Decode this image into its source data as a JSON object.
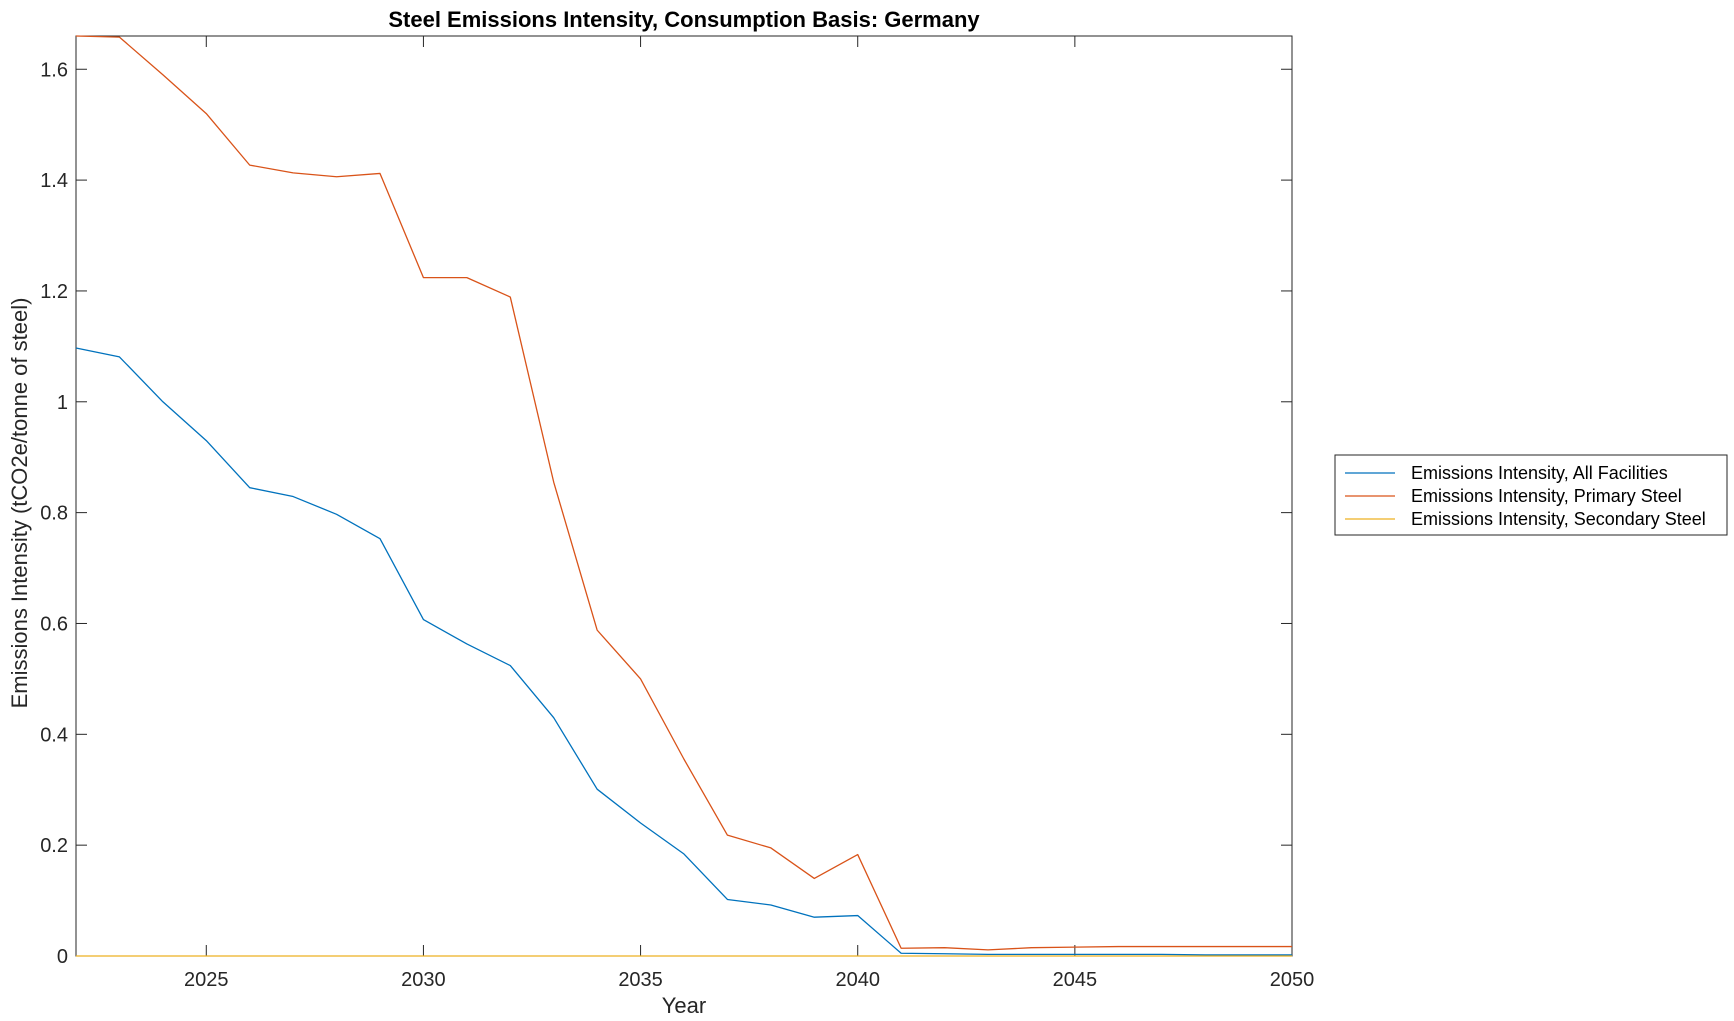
{
  "chart_data": {
    "type": "line",
    "title": "Steel Emissions Intensity, Consumption Basis: Germany",
    "xlabel": "Year",
    "ylabel": "Emissions Intensity (tCO2e/tonne of steel)",
    "xlim": [
      2022,
      2050
    ],
    "ylim": [
      0,
      1.66
    ],
    "xticks": [
      2025,
      2030,
      2035,
      2040,
      2045,
      2050
    ],
    "yticks": [
      0,
      0.2,
      0.4,
      0.6,
      0.8,
      1,
      1.2,
      1.4,
      1.6
    ],
    "ytick_labels": [
      "0",
      "0.2",
      "0.4",
      "0.6",
      "0.8",
      "1",
      "1.2",
      "1.4",
      "1.6"
    ],
    "grid": false,
    "legend_position": "outside-right",
    "x": [
      2022,
      2023,
      2024,
      2025,
      2026,
      2027,
      2028,
      2029,
      2030,
      2031,
      2032,
      2033,
      2034,
      2035,
      2036,
      2037,
      2038,
      2039,
      2040,
      2041,
      2042,
      2043,
      2044,
      2045,
      2046,
      2047,
      2048,
      2049,
      2050
    ],
    "series": [
      {
        "name": "Emissions Intensity, All Facilities",
        "color": "#0072BD",
        "values": [
          1.097,
          1.081,
          1.0,
          0.93,
          0.845,
          0.829,
          0.797,
          0.753,
          0.607,
          0.563,
          0.524,
          0.43,
          0.301,
          0.24,
          0.184,
          0.102,
          0.092,
          0.07,
          0.073,
          0.005,
          0.004,
          0.003,
          0.003,
          0.003,
          0.003,
          0.003,
          0.002,
          0.002,
          0.002
        ]
      },
      {
        "name": "Emissions Intensity, Primary Steel",
        "color": "#D95319",
        "values": [
          1.66,
          1.658,
          1.59,
          1.52,
          1.427,
          1.413,
          1.406,
          1.412,
          1.224,
          1.224,
          1.189,
          0.855,
          0.588,
          0.5,
          0.355,
          0.218,
          0.195,
          0.14,
          0.183,
          0.014,
          0.015,
          0.011,
          0.015,
          0.016,
          0.017,
          0.017,
          0.017,
          0.017,
          0.017
        ]
      },
      {
        "name": "Emissions Intensity, Secondary Steel",
        "color": "#EDB120",
        "values": [
          0,
          0,
          0,
          0,
          0,
          0,
          0,
          0,
          0,
          0,
          0,
          0,
          0,
          0,
          0,
          0,
          0,
          0,
          0,
          0,
          0,
          0,
          0,
          0,
          0,
          0,
          0,
          0,
          0
        ]
      }
    ]
  }
}
